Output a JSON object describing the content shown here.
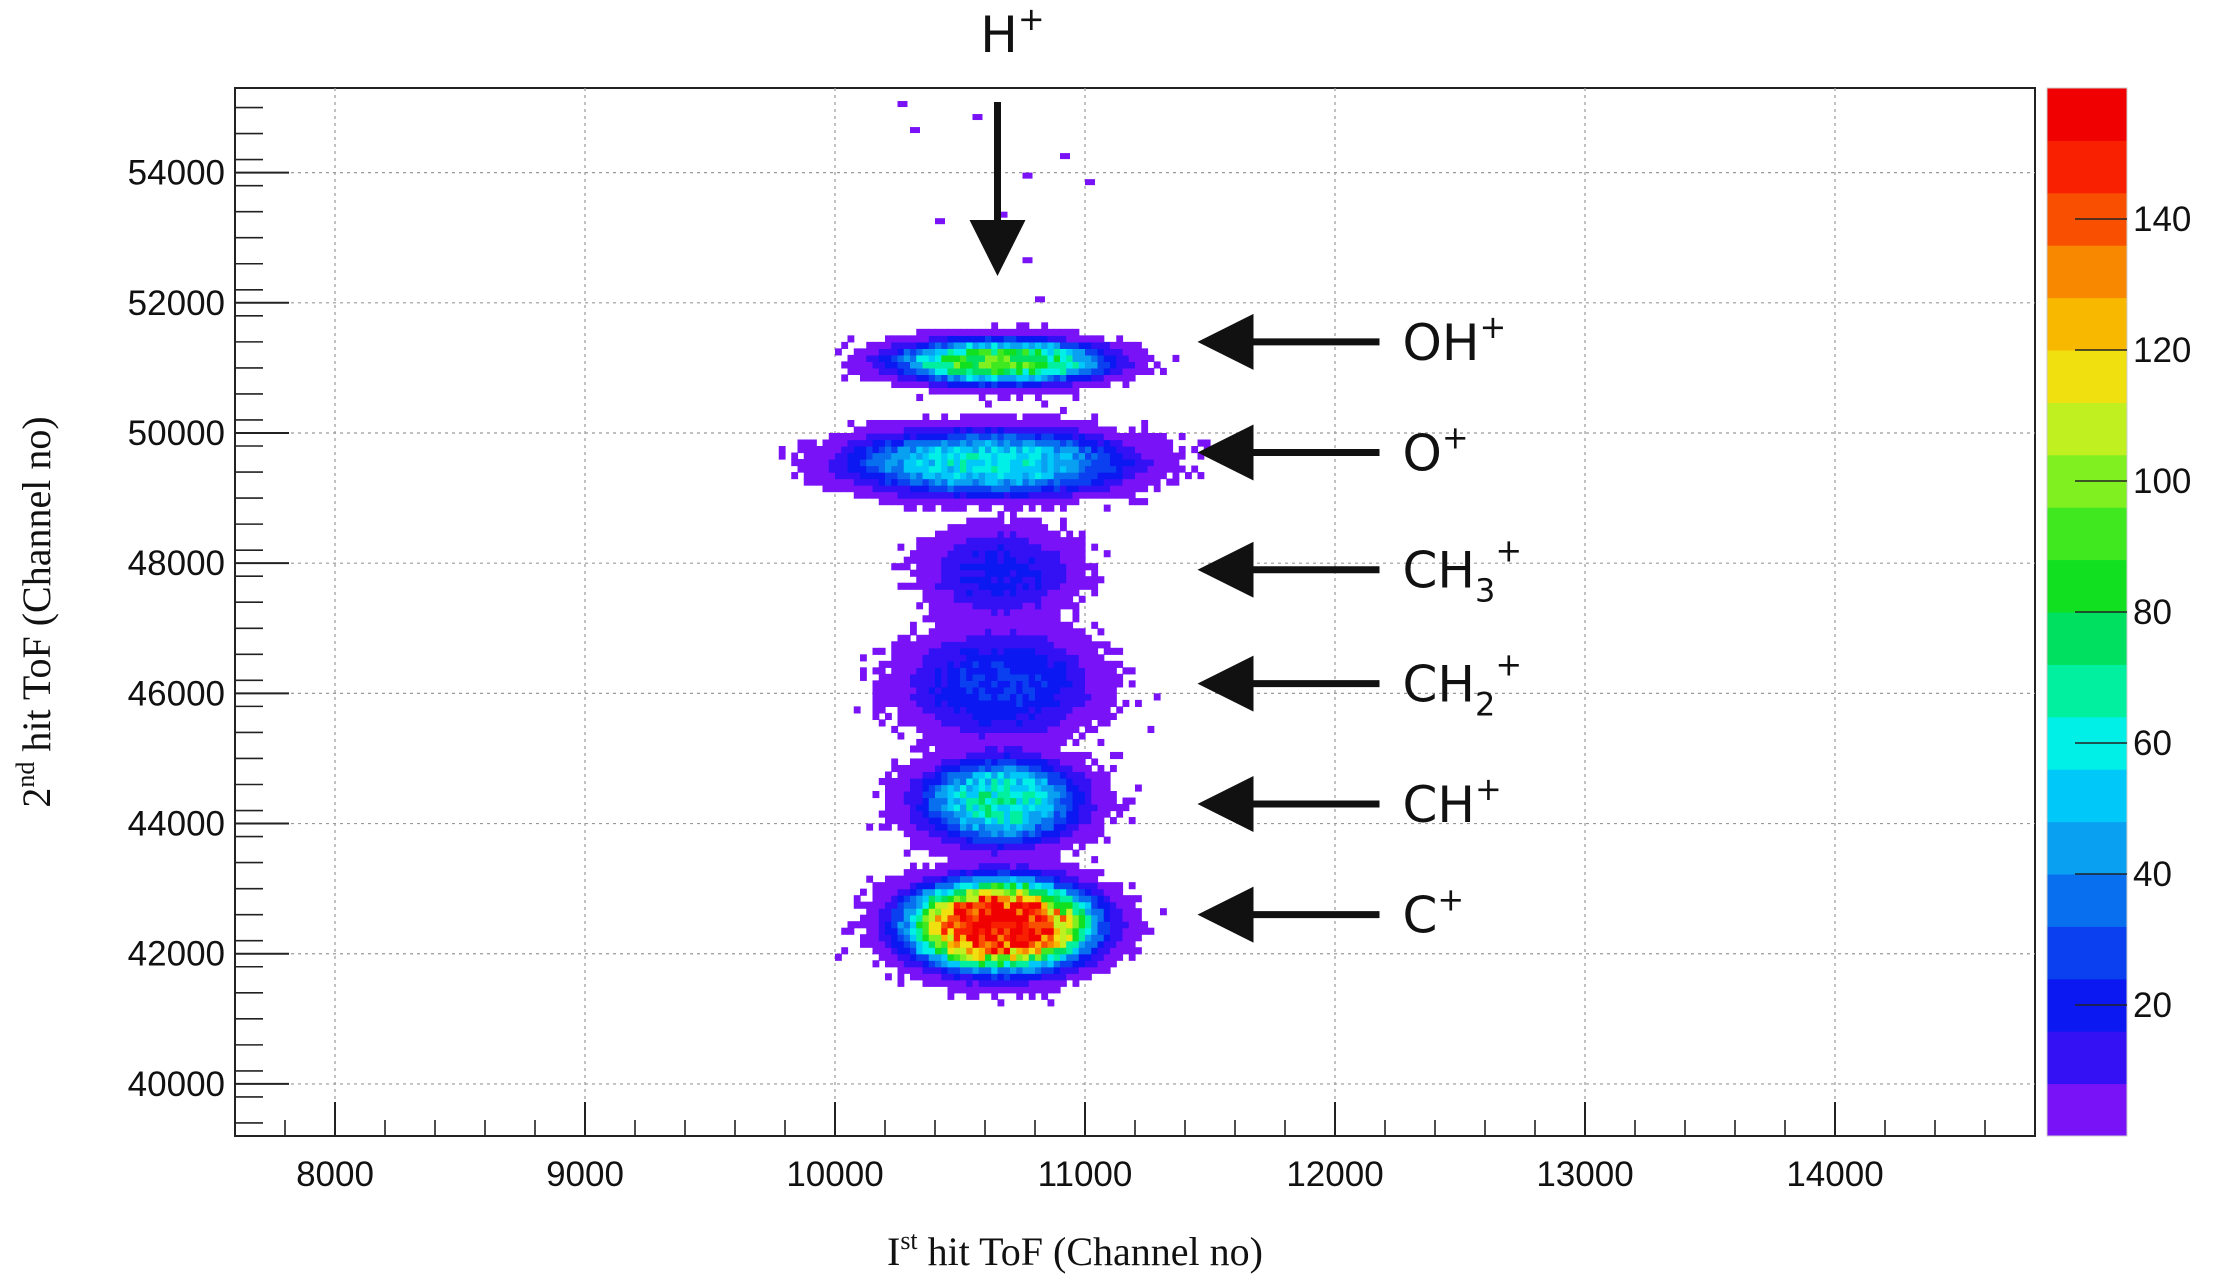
{
  "chart_data": {
    "type": "heatmap",
    "title": "",
    "xlabel": {
      "pre": "I",
      "sup": "st",
      "post": " hit ToF (Channel no)"
    },
    "ylabel": {
      "pre": "2",
      "sup": "nd",
      "post": " hit ToF (Channel no)"
    },
    "xlim": [
      7600,
      14800
    ],
    "ylim": [
      39200,
      55300
    ],
    "xticks": [
      8000,
      9000,
      10000,
      11000,
      12000,
      13000,
      14000
    ],
    "yticks": [
      40000,
      42000,
      44000,
      46000,
      48000,
      50000,
      52000,
      54000
    ],
    "grid": true,
    "colorbar": {
      "range": [
        0,
        160
      ],
      "ticks": [
        20,
        40,
        60,
        80,
        100,
        120,
        140
      ],
      "colors": [
        "#7a12f7",
        "#3410f4",
        "#0b18f1",
        "#0a40f0",
        "#0870ee",
        "#0aa0f2",
        "#00c8f8",
        "#00f0e8",
        "#00f0a0",
        "#00e060",
        "#10e020",
        "#40e820",
        "#80f020",
        "#c0f020",
        "#f0e010",
        "#f8b800",
        "#f88800",
        "#f85000",
        "#f82000",
        "#f00000"
      ]
    },
    "clusters": [
      {
        "name": "C+",
        "x": 10650,
        "y": 42400,
        "sx": 280,
        "sy": 520,
        "peak": 170
      },
      {
        "name": "CH+",
        "x": 10650,
        "y": 44300,
        "sx": 240,
        "sy": 500,
        "peak": 65
      },
      {
        "name": "CH2+",
        "x": 10650,
        "y": 46100,
        "sx": 280,
        "sy": 600,
        "peak": 24
      },
      {
        "name": "CH3+",
        "x": 10650,
        "y": 47800,
        "sx": 220,
        "sy": 500,
        "peak": 18
      },
      {
        "name": "O+",
        "x": 10600,
        "y": 49500,
        "sx": 420,
        "sy": 380,
        "peak": 58
      },
      {
        "name": "OH+",
        "x": 10650,
        "y": 51050,
        "sx": 320,
        "sy": 260,
        "peak": 88
      }
    ],
    "annotations": [
      {
        "base": "H",
        "sub": "",
        "sup": "+",
        "x": 10650,
        "y": 54300,
        "arrow": "down"
      },
      {
        "base": "OH",
        "sub": "",
        "sup": "+",
        "x": 11450,
        "y": 51400,
        "arrow": "left"
      },
      {
        "base": "O",
        "sub": "",
        "sup": "+",
        "x": 11450,
        "y": 49700,
        "arrow": "left"
      },
      {
        "base": "CH",
        "sub": "3",
        "sup": "+",
        "x": 11450,
        "y": 47900,
        "arrow": "left"
      },
      {
        "base": "CH",
        "sub": "2",
        "sup": "+",
        "x": 11450,
        "y": 46150,
        "arrow": "left"
      },
      {
        "base": "CH",
        "sub": "",
        "sup": "+",
        "x": 11450,
        "y": 44300,
        "arrow": "left"
      },
      {
        "base": "C",
        "sub": "",
        "sup": "+",
        "x": 11450,
        "y": 42600,
        "arrow": "left"
      }
    ]
  }
}
